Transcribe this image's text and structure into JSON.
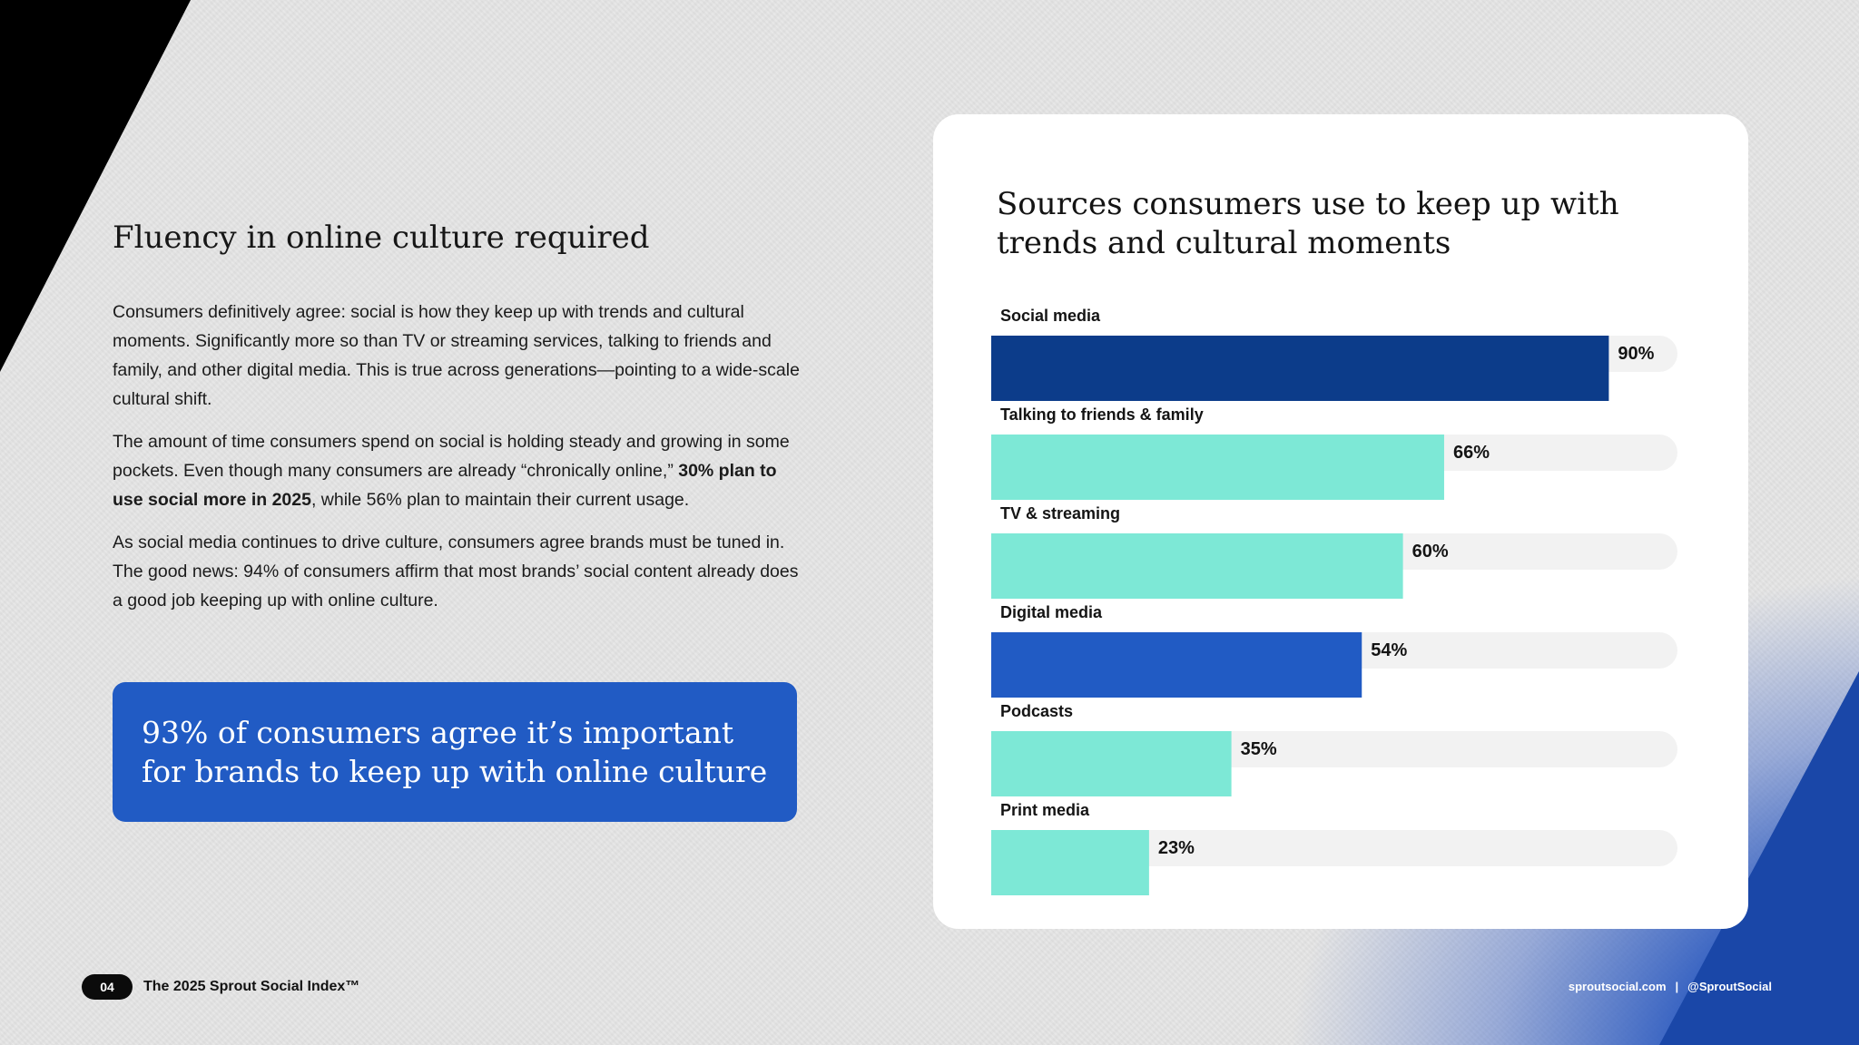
{
  "left": {
    "headline": "Fluency in online culture required",
    "paragraphs": {
      "p1": "Consumers definitively agree: social is how they keep up with trends and cultural moments. Significantly more so than TV or streaming services, talking to friends and family, and other digital media. This is true across generations—pointing to a wide-scale cultural shift.",
      "p2_start": "The amount of time consumers spend on social is holding steady and growing in some pockets. Even though many consumers are already “chronically online,” ",
      "p2_bold": "30% plan to use social more in 2025",
      "p2_end": ", while 56% plan to maintain their current usage.",
      "p3": "As social media continues to drive culture, consumers agree brands must be tuned in. The good news: 94% of consumers affirm that most brands’ social content already does a good job keeping up with online culture."
    },
    "callout": "93% of consumers agree it’s important for brands to keep up with online culture"
  },
  "chart_data": {
    "type": "bar",
    "orientation": "horizontal",
    "title": "Sources consumers use to keep up with trends and cultural moments",
    "categories": [
      "Social media",
      "Talking to friends & family",
      "TV & streaming",
      "Digital media",
      "Podcasts",
      "Print media"
    ],
    "values": [
      90,
      66,
      60,
      54,
      35,
      23
    ],
    "value_labels": [
      "90%",
      "66%",
      "60%",
      "54%",
      "35%",
      "23%"
    ],
    "xlim": [
      0,
      100
    ],
    "colors": [
      "#0c3c8a",
      "#7de8d6",
      "#7de8d6",
      "#215bc4",
      "#7de8d6",
      "#7de8d6"
    ],
    "track_color": "#f2f2f2",
    "grid": false,
    "legend": "none"
  },
  "footer": {
    "page_number": "04",
    "report_name": "The 2025 Sprout Social Index™",
    "site": "sproutsocial.com",
    "separator": "|",
    "handle": "@SproutSocial"
  }
}
